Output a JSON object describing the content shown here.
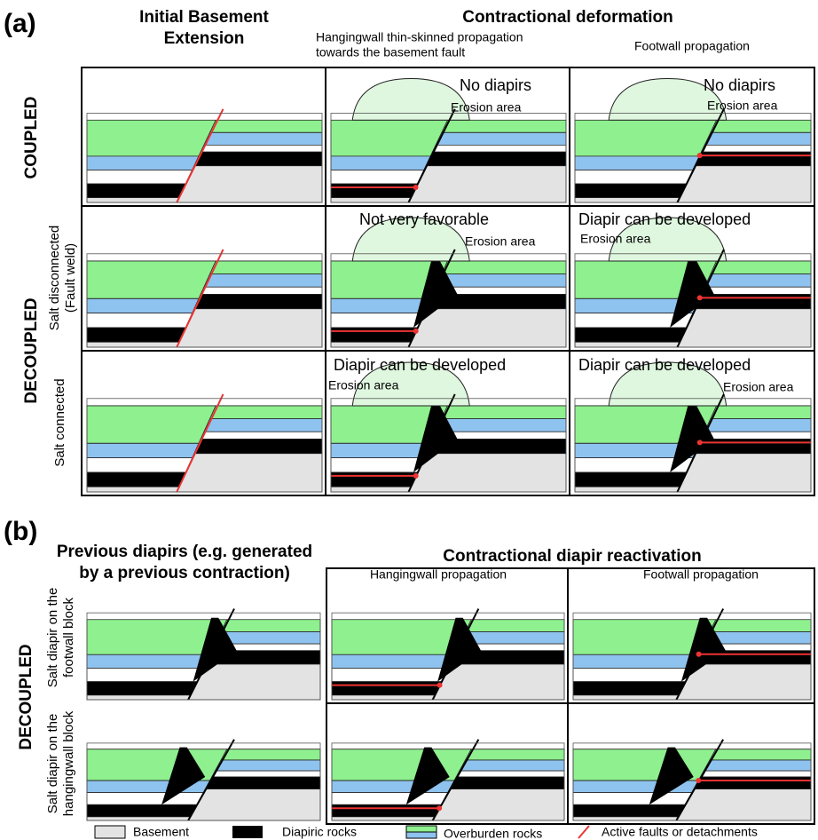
{
  "part_a": {
    "label": "(a)",
    "header_extension": [
      "Initial Basement",
      "Extension"
    ],
    "header_contraction": "Contractional deformation",
    "subheader_hangingwall": [
      "Hangingwall thin-skinned propagation",
      "towards the basement fault"
    ],
    "subheader_footwall": "Footwall propagation",
    "row_coupled": "COUPLED",
    "row_decoupled": "DECOUPLED",
    "row_salt_disconnected": [
      "Salt disconnected",
      "(Fault weld)"
    ],
    "row_salt_connected": "Salt connected",
    "panels": [
      {
        "note": "No diapirs",
        "erosion": "Erosion area"
      },
      {
        "note": "No diapirs",
        "erosion": "Erosion area"
      },
      {
        "note": "Not very favorable",
        "erosion": "Erosion area"
      },
      {
        "note": "Diapir can be developed",
        "erosion": "Erosion area"
      },
      {
        "note": "Diapir can be developed",
        "erosion": "Erosion area"
      },
      {
        "note": "Diapir can be developed",
        "erosion": "Erosion area"
      }
    ]
  },
  "part_b": {
    "label": "(b)",
    "header_previous": [
      "Previous diapirs (e.g. generated",
      "by a previous contraction)"
    ],
    "header_reactivation": "Contractional diapir reactivation",
    "subheader_hangingwall": "Hangingwall propagation",
    "subheader_footwall": "Footwall propagation",
    "row_decoupled": "DECOUPLED",
    "row_footwall": [
      "Salt diapir on the",
      "footwall block"
    ],
    "row_hangingwall": [
      "Salt diapir on the",
      "hangingwall block"
    ]
  },
  "legend": [
    "Basement",
    "Diapiric rocks",
    "Overburden rocks",
    "Active faults or detachments"
  ]
}
